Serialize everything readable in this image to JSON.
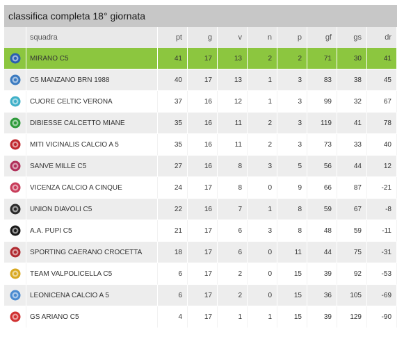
{
  "title": "classifica completa 18° giornata",
  "columns": {
    "team": "squadra",
    "pt": "pt",
    "g": "g",
    "v": "v",
    "n": "n",
    "p": "p",
    "gf": "gf",
    "gs": "gs",
    "dr": "dr"
  },
  "highlight_color": "#8cc63f",
  "rows": [
    {
      "team": "MIRANO C5",
      "pt": "41",
      "g": "17",
      "v": "13",
      "n": "2",
      "p": "2",
      "gf": "71",
      "gs": "30",
      "dr": "41",
      "logo": "mirano-logo-icon",
      "color": "#2a5fb0"
    },
    {
      "team": "C5 MANZANO BRN 1988",
      "pt": "40",
      "g": "17",
      "v": "13",
      "n": "1",
      "p": "3",
      "gf": "83",
      "gs": "38",
      "dr": "45",
      "logo": "manzano-logo-icon",
      "color": "#3a7ac0"
    },
    {
      "team": "CUORE CELTIC VERONA",
      "pt": "37",
      "g": "16",
      "v": "12",
      "n": "1",
      "p": "3",
      "gf": "99",
      "gs": "32",
      "dr": "67",
      "logo": "cuore-celtic-logo-icon",
      "color": "#3fb0c8"
    },
    {
      "team": "DIBIESSE CALCETTO MIANE",
      "pt": "35",
      "g": "16",
      "v": "11",
      "n": "2",
      "p": "3",
      "gf": "119",
      "gs": "41",
      "dr": "78",
      "logo": "dibiesse-logo-icon",
      "color": "#2e9a3a"
    },
    {
      "team": "MITI VICINALIS CALCIO A 5",
      "pt": "35",
      "g": "16",
      "v": "11",
      "n": "2",
      "p": "3",
      "gf": "73",
      "gs": "33",
      "dr": "40",
      "logo": "miti-vicinalis-logo-icon",
      "color": "#c0282d"
    },
    {
      "team": "SANVE MILLE C5",
      "pt": "27",
      "g": "16",
      "v": "8",
      "n": "3",
      "p": "5",
      "gf": "56",
      "gs": "44",
      "dr": "12",
      "logo": "sanve-mille-logo-icon",
      "color": "#b0305a"
    },
    {
      "team": "VICENZA CALCIO A CINQUE",
      "pt": "24",
      "g": "17",
      "v": "8",
      "n": "0",
      "p": "9",
      "gf": "66",
      "gs": "87",
      "dr": "-21",
      "logo": "vicenza-logo-icon",
      "color": "#c83c5a"
    },
    {
      "team": "UNION DIAVOLI C5",
      "pt": "22",
      "g": "16",
      "v": "7",
      "n": "1",
      "p": "8",
      "gf": "59",
      "gs": "67",
      "dr": "-8",
      "logo": "union-diavoli-logo-icon",
      "color": "#2a2a2a"
    },
    {
      "team": "A.A. PUPI C5",
      "pt": "21",
      "g": "17",
      "v": "6",
      "n": "3",
      "p": "8",
      "gf": "48",
      "gs": "59",
      "dr": "-11",
      "logo": "pupi-logo-icon",
      "color": "#1a1a1a"
    },
    {
      "team": "SPORTING CAERANO CROCETTA",
      "pt": "18",
      "g": "17",
      "v": "6",
      "n": "0",
      "p": "11",
      "gf": "44",
      "gs": "75",
      "dr": "-31",
      "logo": "sporting-caerano-logo-icon",
      "color": "#b02a30"
    },
    {
      "team": "TEAM VALPOLICELLA C5",
      "pt": "6",
      "g": "17",
      "v": "2",
      "n": "0",
      "p": "15",
      "gf": "39",
      "gs": "92",
      "dr": "-53",
      "logo": "valpolicella-logo-icon",
      "color": "#d8a820"
    },
    {
      "team": "LEONICENA CALCIO A 5",
      "pt": "6",
      "g": "17",
      "v": "2",
      "n": "0",
      "p": "15",
      "gf": "36",
      "gs": "105",
      "dr": "-69",
      "logo": "leonicena-logo-icon",
      "color": "#4a8ad0"
    },
    {
      "team": "GS ARIANO C5",
      "pt": "4",
      "g": "17",
      "v": "1",
      "n": "1",
      "p": "15",
      "gf": "39",
      "gs": "129",
      "dr": "-90",
      "logo": "ariano-logo-icon",
      "color": "#d03030"
    }
  ]
}
